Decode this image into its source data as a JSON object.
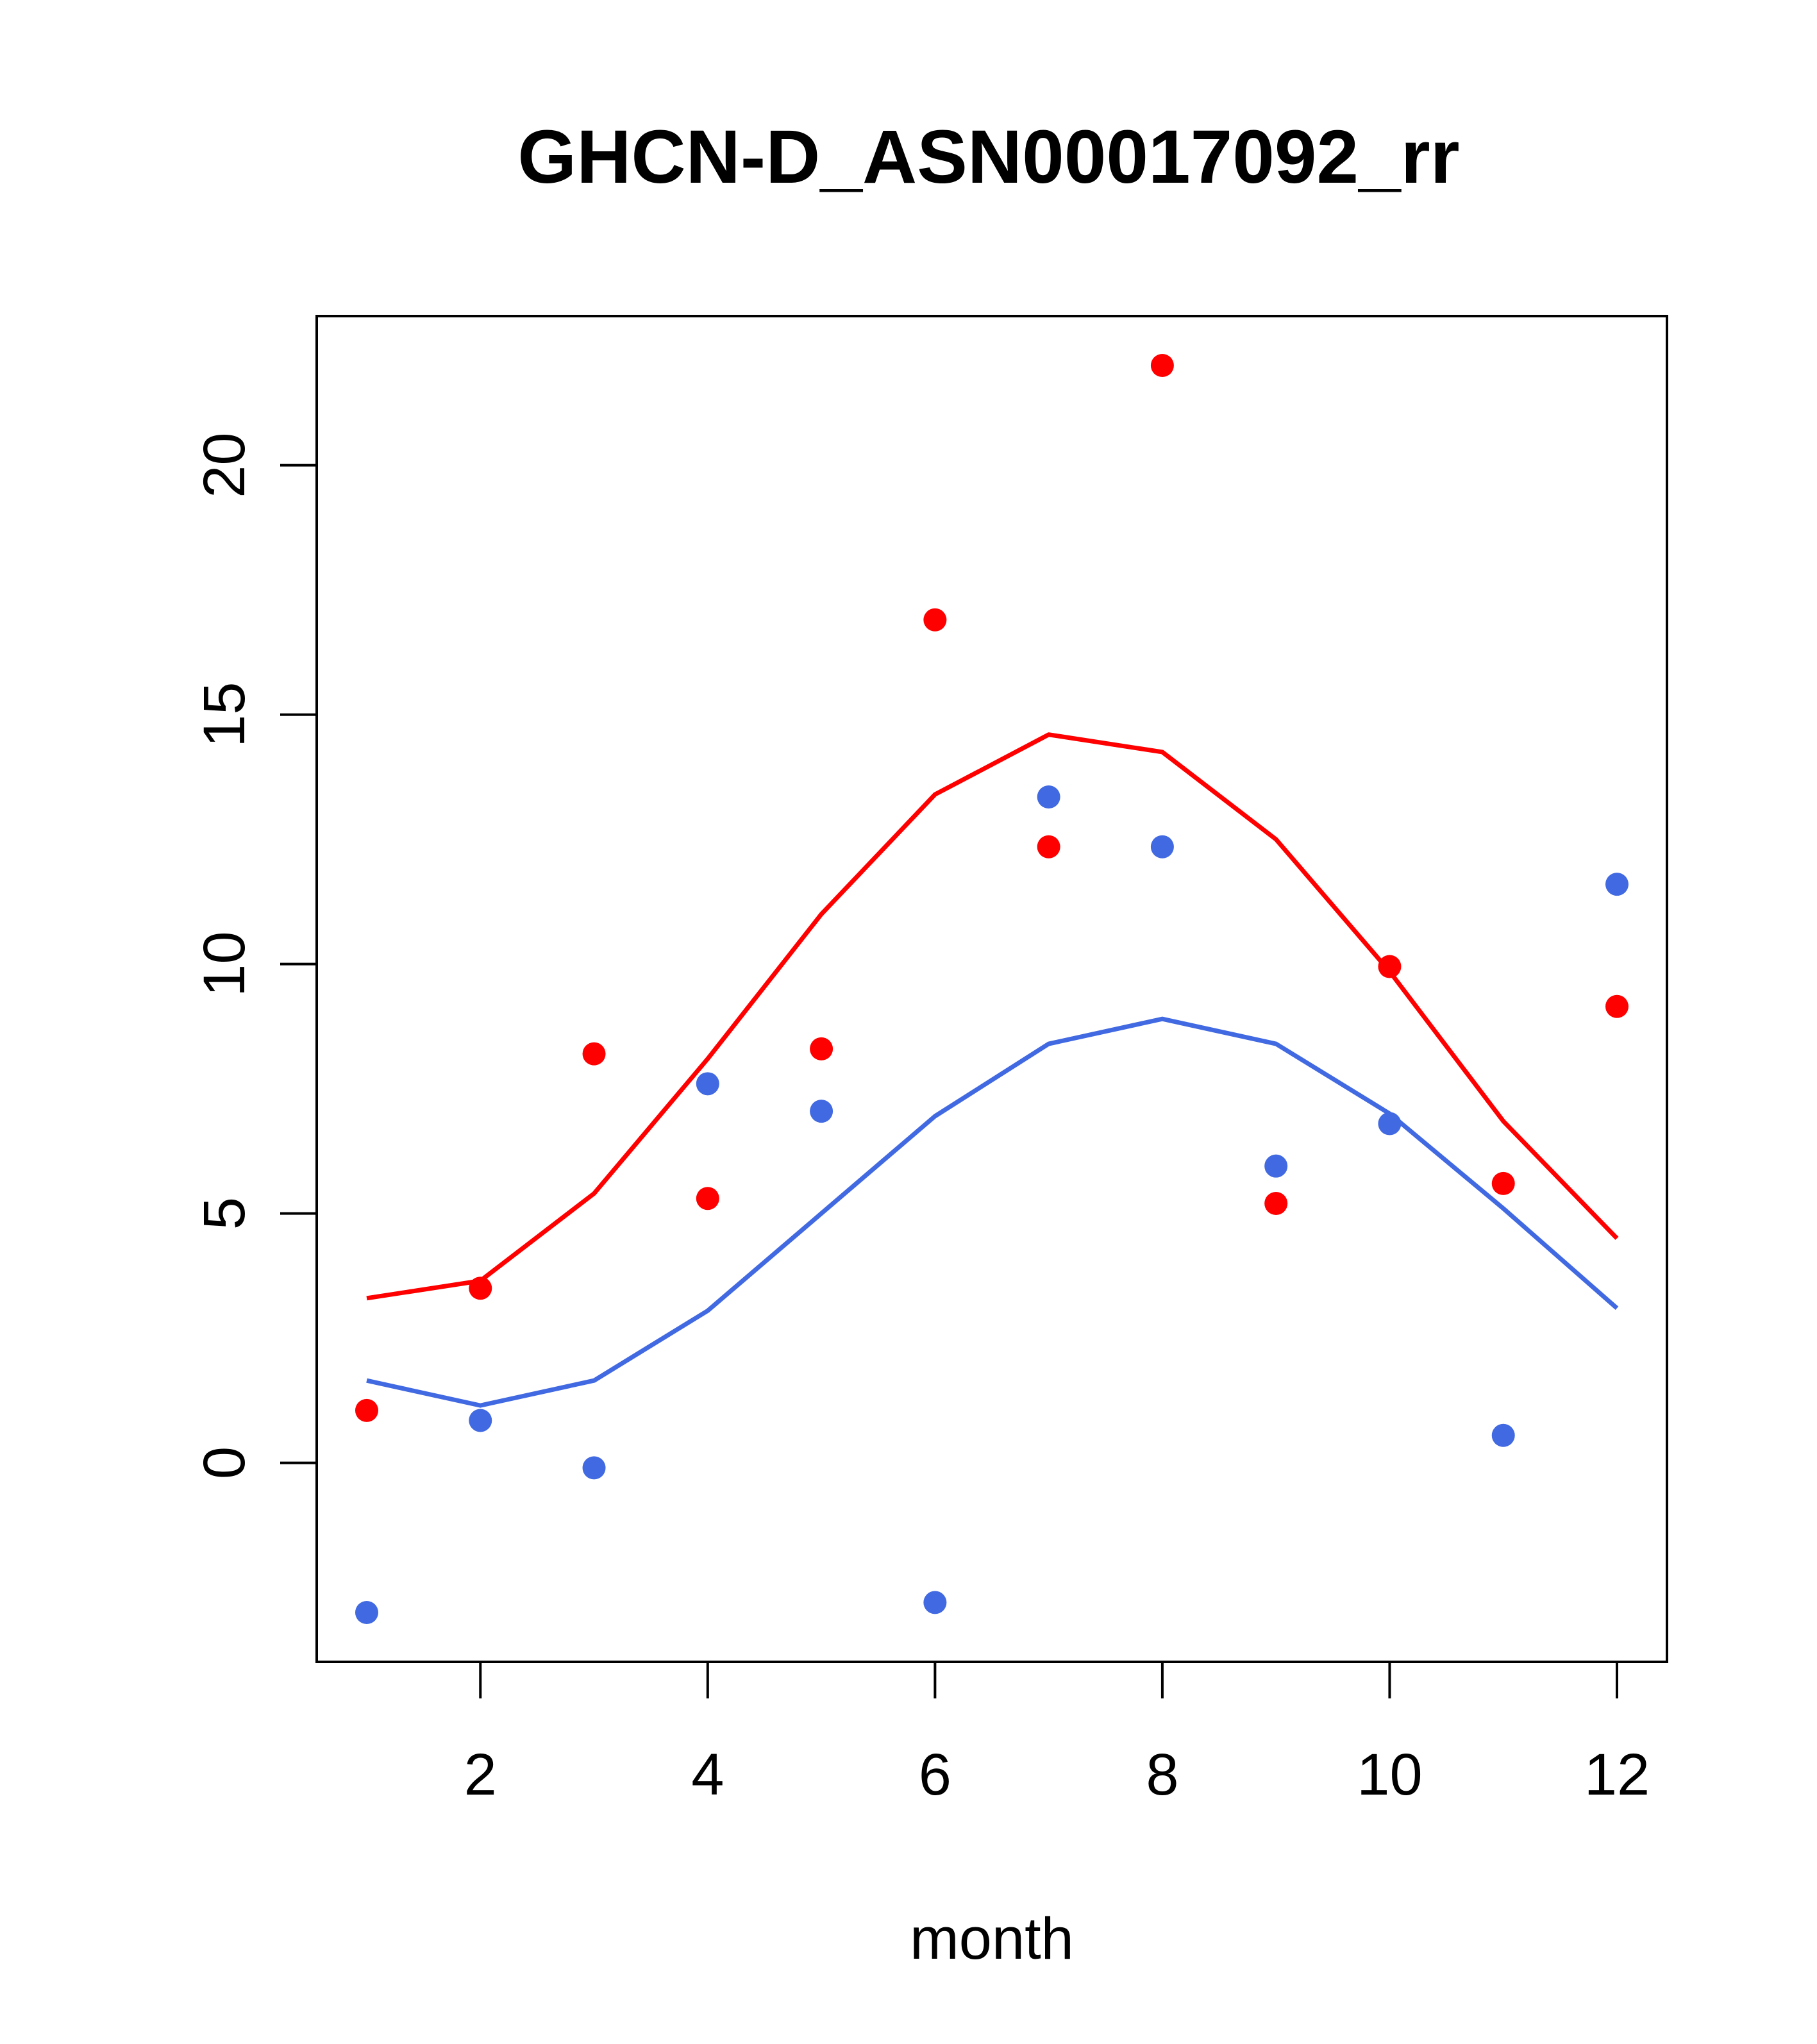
{
  "chart_data": {
    "type": "scatter",
    "title": "GHCN-D_ASN00017092_rr",
    "xlabel": "month",
    "ylabel": "",
    "xlim": [
      0.56,
      12.44
    ],
    "ylim": [
      -3.99,
      22.99
    ],
    "x_ticks": [
      2,
      4,
      6,
      8,
      10,
      12
    ],
    "y_ticks": [
      0,
      5,
      10,
      15,
      20
    ],
    "grid": false,
    "legend": null,
    "series": [
      {
        "name": "red points",
        "kind": "points",
        "color": "#ff0000",
        "x": [
          1,
          2,
          3,
          4,
          5,
          6,
          7,
          8,
          9,
          10,
          11,
          12
        ],
        "values": [
          1.05,
          3.5,
          8.2,
          5.3,
          8.3,
          16.9,
          12.35,
          22.0,
          5.2,
          9.95,
          5.6,
          9.15
        ]
      },
      {
        "name": "blue points",
        "kind": "points",
        "color": "#4169e1",
        "x": [
          1,
          2,
          3,
          4,
          5,
          6,
          7,
          8,
          9,
          10,
          11,
          12
        ],
        "values": [
          -3.0,
          0.85,
          -0.1,
          7.6,
          7.05,
          -2.8,
          13.35,
          12.35,
          5.95,
          6.8,
          0.55,
          11.6
        ]
      },
      {
        "name": "red line",
        "kind": "line",
        "color": "#ff0000",
        "x": [
          1,
          2,
          3,
          4,
          5,
          6,
          7,
          8,
          9,
          10,
          11,
          12
        ],
        "values": [
          3.3,
          3.65,
          5.4,
          8.1,
          11.0,
          13.4,
          14.6,
          14.25,
          12.5,
          9.85,
          6.85,
          4.5
        ]
      },
      {
        "name": "blue line",
        "kind": "line",
        "color": "#4169e1",
        "x": [
          1,
          2,
          3,
          4,
          5,
          6,
          7,
          8,
          9,
          10,
          11,
          12
        ],
        "values": [
          1.65,
          1.15,
          1.65,
          3.05,
          5.0,
          6.95,
          8.4,
          8.9,
          8.4,
          7.0,
          5.1,
          3.1
        ]
      }
    ]
  }
}
